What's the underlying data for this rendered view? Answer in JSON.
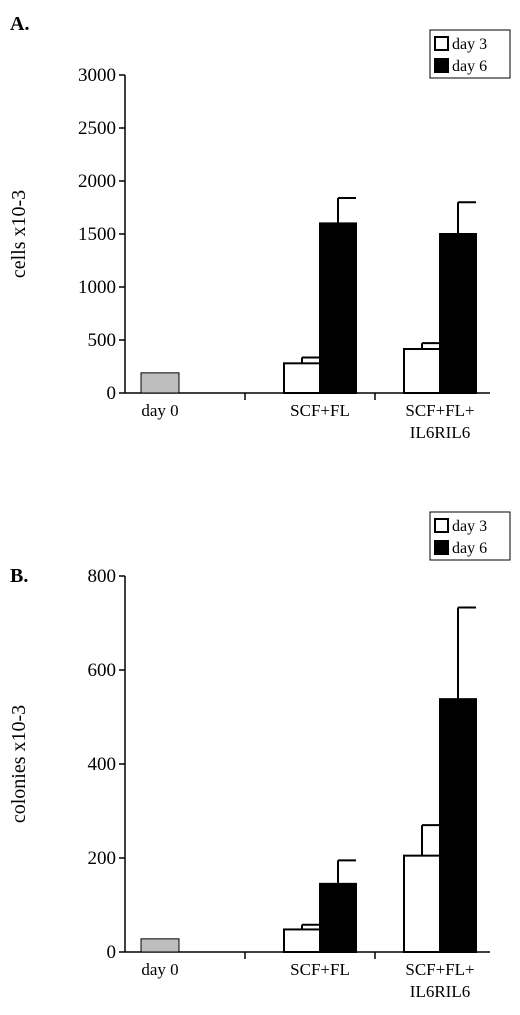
{
  "chart_data": [
    {
      "type": "bar",
      "panel_label": "A.",
      "ylabel": "cells x10-3",
      "ylim": [
        0,
        3000
      ],
      "yticks": [
        "0",
        "500",
        "1000",
        "1500",
        "2000",
        "2500",
        "3000"
      ],
      "categories": [
        {
          "lines": [
            "day 0"
          ]
        },
        {
          "lines": [
            "SCF+FL"
          ]
        },
        {
          "lines": [
            "SCF+FL+",
            "IL6RIL6"
          ]
        }
      ],
      "legend": {
        "position": "top-right",
        "entries": [
          "day 3",
          "day 6"
        ]
      },
      "baseline": {
        "category": 0,
        "value": 190,
        "color": "#bdbdbd"
      },
      "series": [
        {
          "name": "day 3",
          "color": "#ffffff",
          "values": [
            null,
            280,
            415
          ],
          "errors": [
            null,
            55,
            55
          ]
        },
        {
          "name": "day 6",
          "color": "#000000",
          "values": [
            null,
            1600,
            1500
          ],
          "errors": [
            null,
            240,
            300
          ]
        }
      ]
    },
    {
      "type": "bar",
      "panel_label": "B.",
      "ylabel": "colonies x10-3",
      "ylim": [
        0,
        800
      ],
      "yticks": [
        "0",
        "200",
        "400",
        "600",
        "800"
      ],
      "categories": [
        {
          "lines": [
            "day 0"
          ]
        },
        {
          "lines": [
            "SCF+FL"
          ]
        },
        {
          "lines": [
            "SCF+FL+",
            "IL6RIL6"
          ]
        }
      ],
      "legend": {
        "position": "top-right",
        "entries": [
          "day 3",
          "day 6"
        ]
      },
      "baseline": {
        "category": 0,
        "value": 28,
        "color": "#bdbdbd"
      },
      "series": [
        {
          "name": "day 3",
          "color": "#ffffff",
          "values": [
            null,
            48,
            205
          ],
          "errors": [
            null,
            10,
            65
          ]
        },
        {
          "name": "day 6",
          "color": "#000000",
          "values": [
            null,
            145,
            538
          ],
          "errors": [
            null,
            50,
            195
          ]
        }
      ]
    }
  ]
}
